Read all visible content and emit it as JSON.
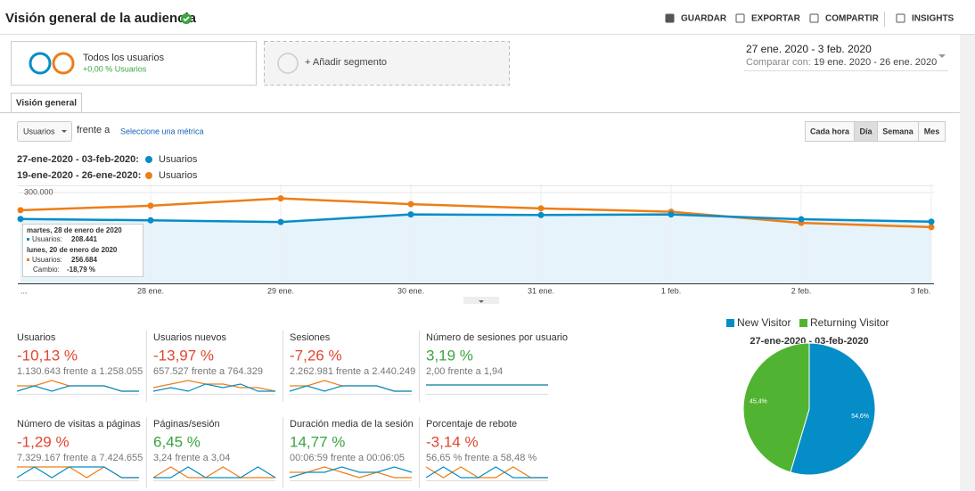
{
  "header": {
    "title": "Visión general de la audiencia",
    "actions": [
      "GUARDAR",
      "EXPORTAR",
      "COMPARTIR",
      "INSIGHTS"
    ]
  },
  "segments": {
    "all_users": {
      "label": "Todos los usuarios",
      "change": "+0,00 % Usuarios"
    },
    "add": "+ Añadir segmento"
  },
  "date_range": {
    "main": "27 ene. 2020 - 3 feb. 2020",
    "compare_label": "Comparar con:",
    "compare": "19 ene. 2020 - 26 ene. 2020"
  },
  "tab": "Visión general",
  "controls": {
    "metric": "Usuarios",
    "versus": "frente a",
    "select_metric": "Seleccione una métrica",
    "granularity": [
      "Cada hora",
      "Día",
      "Semana",
      "Mes"
    ],
    "selected": 1
  },
  "chart_data": [
    {
      "type": "line",
      "categories": [
        "...",
        "28 ene.",
        "29 ene.",
        "30 ene.",
        "31 ene.",
        "1 feb.",
        "2 feb.",
        "3 feb."
      ],
      "series": [
        {
          "period": "27-ene-2020 - 03-feb-2020:",
          "name": "Usuarios",
          "color": "#058dc7",
          "values": [
            213000,
            208441,
            203000,
            228000,
            226000,
            228000,
            212000,
            204000
          ]
        },
        {
          "period": "19-ene-2020 - 26-ene-2020:",
          "name": "Usuarios",
          "color": "#ed7e17",
          "values": [
            242000,
            256684,
            281000,
            262000,
            248000,
            237000,
            200000,
            186000
          ]
        }
      ],
      "ylim": [
        0,
        330000
      ],
      "yticks": [
        {
          "value": 300000,
          "label": "300.000"
        }
      ],
      "grid": true,
      "tooltip": {
        "date1": "martes, 28 de enero de 2020",
        "label1": "Usuarios:",
        "value1": "208.441",
        "date2": "lunes, 20 de enero de 2020",
        "label2": "Usuarios:",
        "value2": "256.684",
        "change_label": "Cambio:",
        "change": "-18,79 %"
      }
    },
    {
      "type": "pie",
      "title": "27-ene-2020 - 03-feb-2020",
      "categories": [
        "New Visitor",
        "Returning Visitor"
      ],
      "values": [
        54.6,
        45.4
      ],
      "value_labels": [
        "54,6%",
        "45,4%"
      ],
      "colors": [
        "#058dc7",
        "#50b432"
      ]
    }
  ],
  "metrics": [
    {
      "label": "Usuarios",
      "change": "-10,13 %",
      "color": "#e0462f",
      "detail": "1.130.643 frente a 1.258.055",
      "spark": [
        [
          5,
          6,
          5,
          6,
          6,
          6,
          5,
          5
        ],
        [
          6,
          6,
          7,
          6,
          6,
          6,
          5,
          5
        ]
      ]
    },
    {
      "label": "Usuarios nuevos",
      "change": "-13,97 %",
      "color": "#e0462f",
      "detail": "657.527 frente a 764.329",
      "spark": [
        [
          4,
          5,
          4,
          6,
          5,
          6,
          4,
          4
        ],
        [
          5,
          6,
          7,
          6,
          6,
          5,
          5,
          4
        ]
      ]
    },
    {
      "label": "Sesiones",
      "change": "-7,26 %",
      "color": "#e0462f",
      "detail": "2.262.981 frente a 2.440.249",
      "spark": [
        [
          5,
          6,
          5,
          6,
          6,
          6,
          5,
          5
        ],
        [
          6,
          6,
          7,
          6,
          6,
          6,
          5,
          5
        ]
      ]
    },
    {
      "label": "Número de sesiones por usuario",
      "change": "3,19 %",
      "color": "#3aa53f",
      "detail": "2,00 frente a 1,94",
      "spark": [
        [
          5,
          5,
          5,
          5,
          5,
          5,
          5,
          5
        ],
        [
          5,
          5,
          5,
          5,
          5,
          5,
          5,
          5
        ]
      ]
    },
    {
      "label": "Número de visitas a páginas",
      "change": "-1,29 %",
      "color": "#e0462f",
      "detail": "7.329.167 frente a 7.424.655",
      "spark": [
        [
          5,
          6,
          5,
          6,
          6,
          6,
          5,
          5
        ],
        [
          6,
          6,
          6,
          6,
          5,
          6,
          5,
          5
        ]
      ]
    },
    {
      "label": "Páginas/sesión",
      "change": "6,45 %",
      "color": "#3aa53f",
      "detail": "3,24 frente a 3,04",
      "spark": [
        [
          5,
          5,
          6,
          5,
          5,
          5,
          6,
          5
        ],
        [
          5,
          6,
          5,
          5,
          6,
          5,
          5,
          5
        ]
      ]
    },
    {
      "label": "Duración media de la sesión",
      "change": "14,77 %",
      "color": "#3aa53f",
      "detail": "00:06:59 frente a 00:06:05",
      "spark": [
        [
          4,
          5,
          5,
          6,
          5,
          5,
          6,
          5
        ],
        [
          5,
          5,
          6,
          5,
          4,
          5,
          4,
          4
        ]
      ]
    },
    {
      "label": "Porcentaje de rebote",
      "change": "-3,14 %",
      "color": "#e0462f",
      "detail": "56,65 % frente a 58,48 %",
      "spark": [
        [
          5,
          6,
          5,
          5,
          6,
          5,
          5,
          5
        ],
        [
          6,
          5,
          6,
          5,
          5,
          6,
          5,
          5
        ]
      ]
    }
  ]
}
